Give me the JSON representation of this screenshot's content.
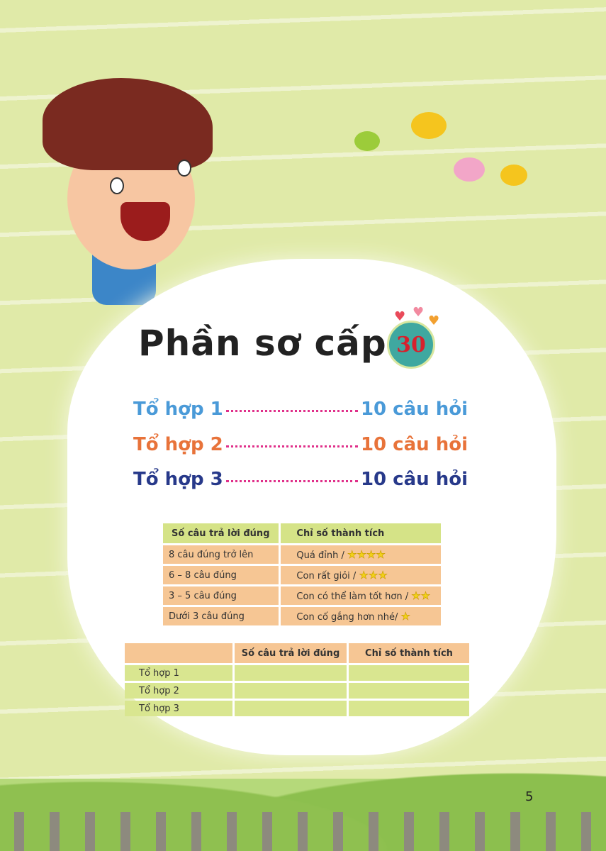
{
  "title": "Phần sơ cấp",
  "badge": "30",
  "contents": [
    {
      "label": "Tổ hợp 1",
      "value": "10 câu hỏi",
      "color": "#4a9ad8"
    },
    {
      "label": "Tổ hợp 2",
      "value": "10 câu hỏi",
      "color": "#e8733a"
    },
    {
      "label": "Tổ hợp 3",
      "value": "10 câu hỏi",
      "color": "#27398a"
    }
  ],
  "scale_table": {
    "headers": [
      "Số câu trả lời đúng",
      "Chỉ số thành tích"
    ],
    "rows": [
      {
        "range": "8 câu đúng trở lên",
        "rating": "Quá đỉnh /",
        "stars": "★★★★"
      },
      {
        "range": "6 – 8 câu đúng",
        "rating": "Con rất giỏi /",
        "stars": "★★★"
      },
      {
        "range": "3 – 5 câu đúng",
        "rating": "Con có thể làm tốt hơn /",
        "stars": "★★"
      },
      {
        "range": "Dưới 3 câu đúng",
        "rating": "Con cố gắng hơn nhé/",
        "stars": "★"
      }
    ]
  },
  "result_table": {
    "headers": [
      "",
      "Số câu trả lời đúng",
      "Chỉ số thành tích"
    ],
    "rows": [
      "Tổ hợp 1",
      "Tổ hợp 2",
      "Tổ hợp 3"
    ]
  },
  "page_number": "5"
}
